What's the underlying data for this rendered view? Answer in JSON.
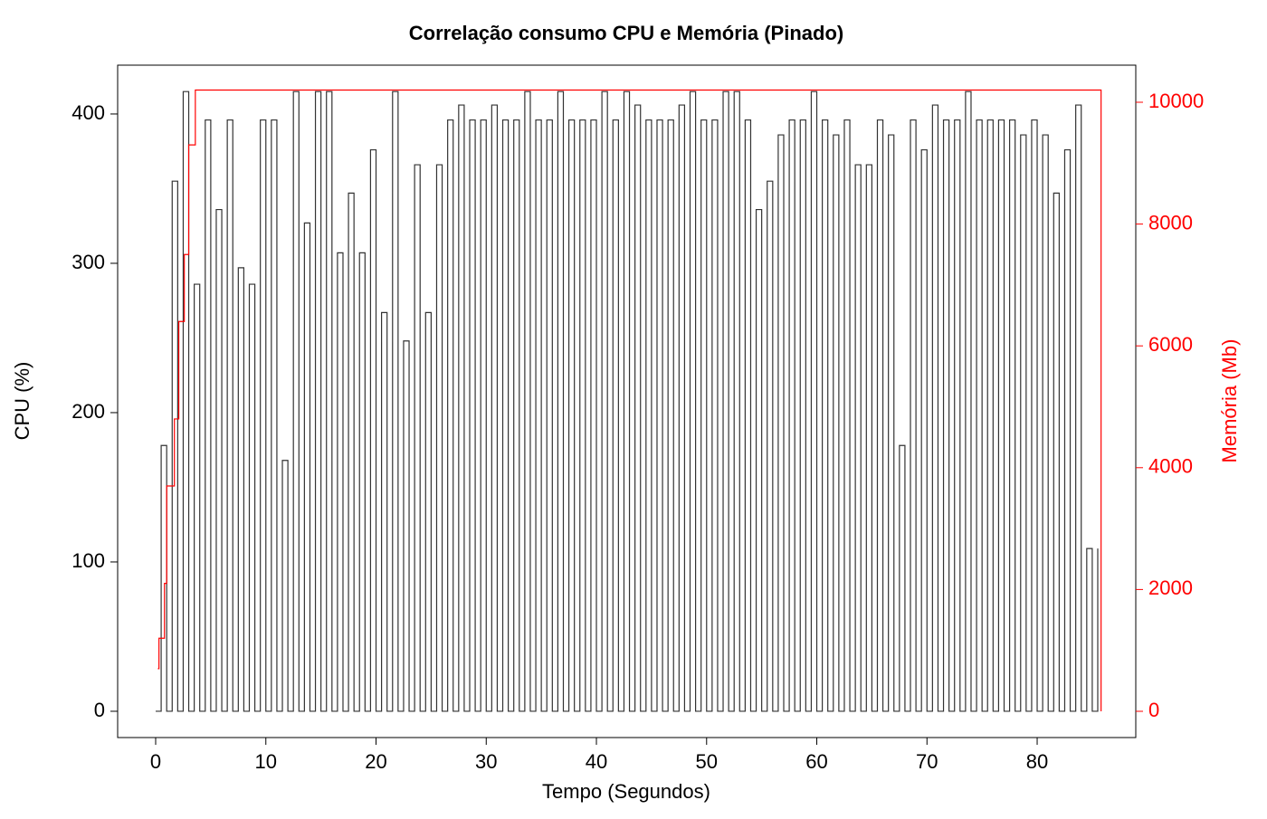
{
  "chart_data": {
    "type": "step",
    "title": "Correlação consumo CPU e Memória (Pinado)",
    "x_label": "Tempo (Segundos)",
    "y_label": "CPU (%)",
    "y2_label": "Memória (Mb)",
    "xlim": [
      -3.45,
      88.95
    ],
    "xticks": [
      0,
      10,
      20,
      30,
      40,
      50,
      60,
      70,
      80
    ],
    "ylim": [
      -17.6,
      432.7
    ],
    "yticks": [
      0,
      100,
      200,
      300,
      400
    ],
    "y2lim": [
      -431,
      10609
    ],
    "y2ticks": [
      0,
      2000,
      4000,
      6000,
      8000,
      10000
    ],
    "series": [
      {
        "color": "#333333",
        "x": [
          0,
          0.5,
          1,
          1.5,
          2,
          2.5,
          3,
          3.5,
          4,
          4.5,
          5,
          5.5,
          6,
          6.5,
          7,
          7.5,
          8,
          8.5,
          9,
          9.5,
          10,
          10.5,
          11,
          11.5,
          12,
          12.5,
          13,
          13.5,
          14,
          14.5,
          15,
          15.5,
          16,
          16.5,
          17,
          17.5,
          18,
          18.5,
          19,
          19.5,
          20,
          20.5,
          21,
          21.5,
          22,
          22.5,
          23,
          23.5,
          24,
          24.5,
          25,
          25.5,
          26,
          26.5,
          27,
          27.5,
          28,
          28.5,
          29,
          29.5,
          30,
          30.5,
          31,
          31.5,
          32,
          32.5,
          33,
          33.5,
          34,
          34.5,
          35,
          35.5,
          36,
          36.5,
          37,
          37.5,
          38,
          38.5,
          39,
          39.5,
          40,
          40.5,
          41,
          41.5,
          42,
          42.5,
          43,
          43.5,
          44,
          44.5,
          45,
          45.5,
          46,
          46.5,
          47,
          47.5,
          48,
          48.5,
          49,
          49.5,
          50,
          50.5,
          51,
          51.5,
          52,
          52.5,
          53,
          53.5,
          54,
          54.5,
          55,
          55.5,
          56,
          56.5,
          57,
          57.5,
          58,
          58.5,
          59,
          59.5,
          60,
          60.5,
          61,
          61.5,
          62,
          62.5,
          63,
          63.5,
          64,
          64.5,
          65,
          65.5,
          66,
          66.5,
          67,
          67.5,
          68,
          68.5,
          69,
          69.5,
          70,
          70.5,
          71,
          71.5,
          72,
          72.5,
          73,
          73.5,
          74,
          74.5,
          75,
          75.5,
          76,
          76.5,
          77,
          77.5,
          78,
          78.5,
          79,
          79.5,
          80,
          80.5,
          81,
          81.5,
          82,
          82.5,
          83,
          83.5,
          84,
          84.5,
          85,
          85.5
        ],
        "values": [
          0,
          178,
          0,
          355,
          0,
          415,
          0,
          286,
          0,
          396,
          0,
          336,
          0,
          396,
          0,
          297,
          0,
          286,
          0,
          396,
          0,
          396,
          0,
          168,
          0,
          415,
          0,
          327,
          0,
          415,
          0,
          415,
          0,
          307,
          0,
          347,
          0,
          307,
          0,
          376,
          0,
          267,
          0,
          415,
          0,
          248,
          0,
          366,
          0,
          267,
          0,
          366,
          0,
          396,
          0,
          406,
          0,
          396,
          0,
          396,
          0,
          406,
          0,
          396,
          0,
          396,
          0,
          415,
          0,
          396,
          0,
          396,
          0,
          415,
          0,
          396,
          0,
          396,
          0,
          396,
          0,
          415,
          0,
          396,
          0,
          415,
          0,
          406,
          0,
          396,
          0,
          396,
          0,
          396,
          0,
          406,
          0,
          415,
          0,
          396,
          0,
          396,
          0,
          415,
          0,
          415,
          0,
          396,
          0,
          336,
          0,
          355,
          0,
          386,
          0,
          396,
          0,
          396,
          0,
          415,
          0,
          396,
          0,
          386,
          0,
          396,
          0,
          366,
          0,
          366,
          0,
          396,
          0,
          386,
          0,
          178,
          0,
          396,
          0,
          376,
          0,
          406,
          0,
          396,
          0,
          396,
          0,
          415,
          0,
          396,
          0,
          396,
          0,
          396,
          0,
          396,
          0,
          386,
          0,
          396,
          0,
          386,
          0,
          347,
          0,
          376,
          0,
          406,
          0,
          109,
          0,
          109
        ]
      },
      {
        "color": "#ff0000",
        "axis": "y2",
        "x": [
          0.2,
          0.3,
          0.8,
          1.0,
          1.7,
          2.1,
          2.6,
          3.0,
          3.6,
          85.8
        ],
        "values": [
          700,
          1200,
          2100,
          3700,
          4800,
          6400,
          7500,
          9300,
          10200,
          0
        ]
      }
    ]
  }
}
